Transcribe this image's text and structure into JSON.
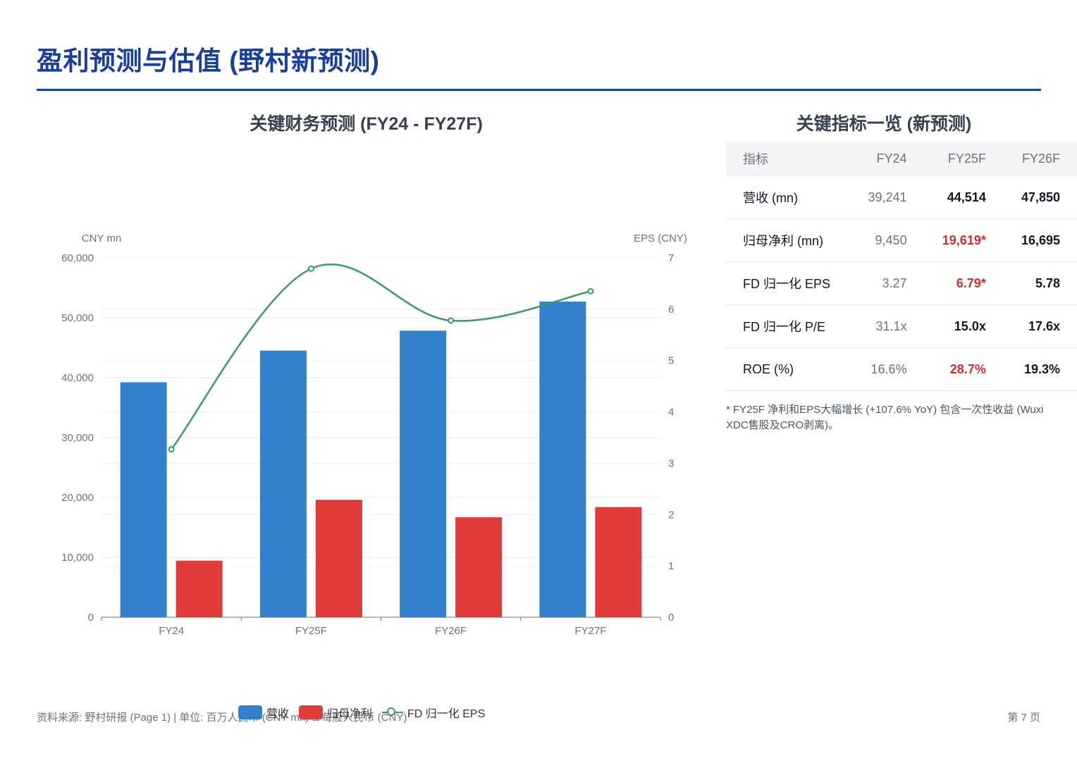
{
  "header": {
    "title": "盈利预测与估值 (野村新预测)"
  },
  "chart_section": {
    "title": "关键财务预测 (FY24 - FY27F)"
  },
  "chart_data": {
    "type": "bar",
    "categories": [
      "FY24",
      "FY25F",
      "FY26F",
      "FY27F"
    ],
    "series": [
      {
        "name": "营收",
        "type": "bar",
        "axis": "left",
        "color": "#3380cc",
        "values": [
          39241,
          44514,
          47850,
          52700
        ]
      },
      {
        "name": "归母净利",
        "type": "bar",
        "axis": "left",
        "color": "#e03c3c",
        "values": [
          9450,
          19619,
          16695,
          18400
        ]
      },
      {
        "name": "FD 归一化 EPS",
        "type": "line",
        "axis": "right",
        "color": "#3a9b67",
        "values": [
          3.27,
          6.79,
          5.78,
          6.35
        ]
      }
    ],
    "y_left": {
      "label": "CNY mn",
      "min": 0,
      "max": 60000,
      "ticks": [
        "0",
        "10,000",
        "20,000",
        "30,000",
        "40,000",
        "50,000",
        "60,000"
      ]
    },
    "y_right": {
      "label": "EPS (CNY)",
      "min": 0,
      "max": 7,
      "ticks": [
        "0",
        "1",
        "2",
        "3",
        "4",
        "5",
        "6",
        "7"
      ]
    },
    "grid": true,
    "legend": "bottom-center"
  },
  "table_section": {
    "title": "关键指标一览 (新预测)",
    "headers": [
      "指标",
      "FY24",
      "FY25F",
      "FY26F"
    ],
    "rows": [
      {
        "metric": "营收 (mn)",
        "fy24": "39,241",
        "fy25": "44,514",
        "fy26": "47,850",
        "fy25_highlight": false
      },
      {
        "metric": "归母净利 (mn)",
        "fy24": "9,450",
        "fy25": "19,619*",
        "fy26": "16,695",
        "fy25_highlight": true
      },
      {
        "metric": "FD 归一化 EPS",
        "fy24": "3.27",
        "fy25": "6.79*",
        "fy26": "5.78",
        "fy25_highlight": true
      },
      {
        "metric": "FD 归一化 P/E",
        "fy24": "31.1x",
        "fy25": "15.0x",
        "fy26": "17.6x",
        "fy25_highlight": false
      },
      {
        "metric": "ROE (%)",
        "fy24": "16.6%",
        "fy25": "28.7%",
        "fy26": "19.3%",
        "fy25_highlight": true
      }
    ],
    "note": "* FY25F 净利和EPS大幅增长 (+107.6% YoY) 包含一次性收益 (Wuxi XDC售股及CRO剥离)。"
  },
  "footer": {
    "source": "资料来源: 野村研报 (Page 1) | 单位: 百万人民币 (CNY mn) & 每股人民币 (CNY)",
    "page": "第 7 页"
  },
  "colors": {
    "brand": "#1a3e9e",
    "highlight": "#d32f2f"
  }
}
